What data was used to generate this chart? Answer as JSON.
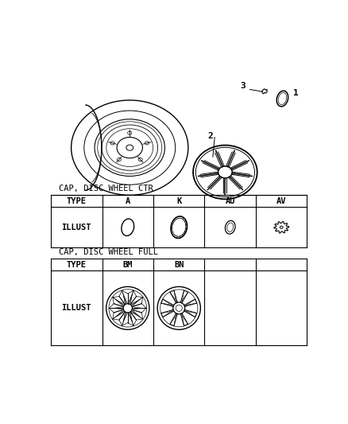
{
  "bg_color": "#ffffff",
  "table1_title": "CAP, DISC WHEEL CTR",
  "table1_headers": [
    "TYPE",
    "A",
    "K",
    "AU",
    "AV"
  ],
  "table2_title": "CAP, DISC WHEEL FULL",
  "table2_headers": [
    "TYPE",
    "BM",
    "BN",
    "",
    ""
  ],
  "label1": "1",
  "label2": "2",
  "label3": "3",
  "line_color": "#000000",
  "text_color": "#000000",
  "font_size_label": 8,
  "font_size_table": 7.5,
  "font_size_title": 7.5
}
